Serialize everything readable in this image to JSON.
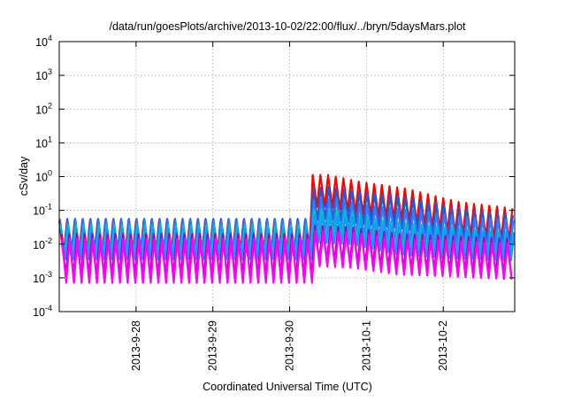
{
  "chart_data": {
    "type": "line",
    "title": "/data/run/goesPlots/archive/2013-10-02/22:00/flux/../bryn/5daysMars.plot",
    "xlabel": "Coordinated Universal Time (UTC)",
    "ylabel": "cSv/day",
    "yscale": "log",
    "ylim_exponent": [
      -4,
      4
    ],
    "y_ticks": [
      {
        "base": "10",
        "exp": "-4",
        "value": -4
      },
      {
        "base": "10",
        "exp": "-3",
        "value": -3
      },
      {
        "base": "10",
        "exp": "-2",
        "value": -2
      },
      {
        "base": "10",
        "exp": "-1",
        "value": -1
      },
      {
        "base": "10",
        "exp": "0",
        "value": 0
      },
      {
        "base": "10",
        "exp": "1",
        "value": 1
      },
      {
        "base": "10",
        "exp": "2",
        "value": 2
      },
      {
        "base": "10",
        "exp": "3",
        "value": 3
      },
      {
        "base": "10",
        "exp": "4",
        "value": 4
      }
    ],
    "xlim_days": [
      0,
      5.93
    ],
    "x_ticks": [
      {
        "label": "2013-9-28",
        "day": 1.0
      },
      {
        "label": "2013-9-29",
        "day": 2.0
      },
      {
        "label": "2013-9-30",
        "day": 3.0
      },
      {
        "label": "2013-10-1",
        "day": 4.0
      },
      {
        "label": "2013-10-2",
        "day": 5.0
      }
    ],
    "grid": true,
    "oscillation_period_days": 0.1,
    "event_start_day": 3.3,
    "series": [
      {
        "color": "#ff0000",
        "base_peak": -1.3,
        "base_amp": 1.05,
        "event_peak": 0.05,
        "event_amp": 0.95,
        "decay": [
          [
            3.3,
            0.05
          ],
          [
            3.5,
            0.05
          ],
          [
            3.9,
            -0.15
          ],
          [
            4.5,
            -0.35
          ],
          [
            5.2,
            -0.75
          ],
          [
            5.93,
            -0.95
          ]
        ]
      },
      {
        "color": "#1a5fd8",
        "base_peak": -1.25,
        "base_amp": 1.1,
        "event_peak": -0.35,
        "event_amp": 0.95,
        "decay": [
          [
            3.3,
            -0.35
          ],
          [
            3.5,
            -0.3
          ],
          [
            3.9,
            -0.45
          ],
          [
            4.5,
            -0.6
          ],
          [
            5.2,
            -0.95
          ],
          [
            5.93,
            -1.15
          ]
        ]
      },
      {
        "color": "#3b78ff",
        "base_peak": -1.3,
        "base_amp": 1.0,
        "event_peak": -0.7,
        "event_amp": 0.95,
        "decay": [
          [
            3.3,
            -0.7
          ],
          [
            3.6,
            -0.65
          ],
          [
            4.0,
            -0.85
          ],
          [
            4.6,
            -1.0
          ],
          [
            5.3,
            -1.2
          ],
          [
            5.93,
            -1.3
          ]
        ]
      },
      {
        "color": "#00c8b4",
        "base_peak": -1.45,
        "base_amp": 0.95,
        "event_peak": -1.0,
        "event_amp": 0.8,
        "decay": [
          [
            3.3,
            -1.0
          ],
          [
            3.7,
            -1.0
          ],
          [
            4.2,
            -1.3
          ],
          [
            4.8,
            -1.45
          ],
          [
            5.5,
            -1.6
          ],
          [
            5.93,
            -1.65
          ]
        ]
      },
      {
        "color": "#00a2ff",
        "base_peak": -1.55,
        "base_amp": 0.9,
        "event_peak": -1.15,
        "event_amp": 0.8,
        "decay": [
          [
            3.3,
            -1.15
          ],
          [
            3.8,
            -1.2
          ],
          [
            4.4,
            -1.5
          ],
          [
            5.0,
            -1.6
          ],
          [
            5.93,
            -1.7
          ]
        ]
      },
      {
        "color": "#b400b4",
        "base_peak": -1.7,
        "base_amp": 1.25,
        "event_peak": -1.45,
        "event_amp": 1.05,
        "decay": [
          [
            3.3,
            -1.45
          ],
          [
            3.8,
            -1.5
          ],
          [
            4.4,
            -1.7
          ],
          [
            5.0,
            -1.75
          ],
          [
            5.93,
            -1.85
          ]
        ]
      },
      {
        "color": "#ff00ff",
        "base_peak": -1.85,
        "base_amp": 1.3,
        "event_peak": -1.6,
        "event_amp": 1.05,
        "decay": [
          [
            3.3,
            -1.6
          ],
          [
            3.8,
            -1.65
          ],
          [
            4.4,
            -1.85
          ],
          [
            5.0,
            -1.9
          ],
          [
            5.93,
            -2.0
          ]
        ]
      }
    ]
  }
}
